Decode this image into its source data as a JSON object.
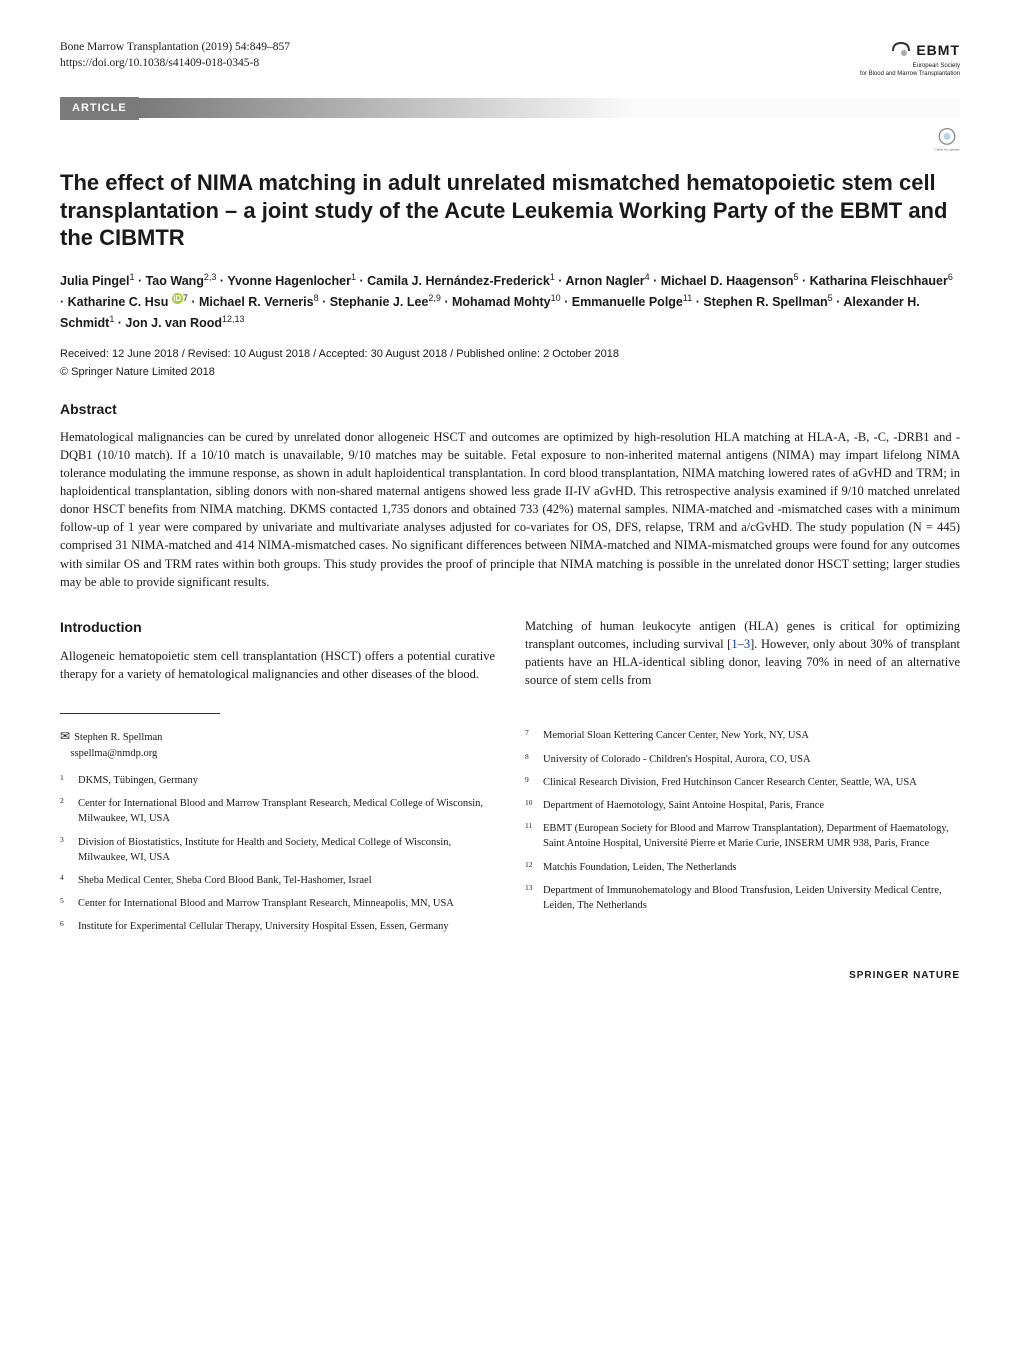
{
  "header": {
    "journal_line": "Bone Marrow Transplantation (2019) 54:849–857",
    "doi_line": "https://doi.org/10.1038/s41409-018-0345-8",
    "article_label": "ARTICLE",
    "logo_text": "EBMT",
    "logo_sub1": "European Society",
    "logo_sub2": "for Blood and Marrow Transplantation",
    "check_updates": "Check for updates"
  },
  "title": "The effect of NIMA matching in adult unrelated mismatched hematopoietic stem cell transplantation – a joint study of the Acute Leukemia Working Party of the EBMT and the CIBMTR",
  "authors_html": "Julia Pingel<sup>1</sup> · Tao Wang<sup>2,3</sup> · Yvonne Hagenlocher<sup>1</sup> · Camila J. Hernández-Frederick<sup>1</sup> · Arnon Nagler<sup>4</sup> · Michael D. Haagenson<sup>5</sup> · Katharina Fleischhauer<sup>6</sup> · Katharine C. Hsu <span class='orcid' data-name='orcid-icon' data-interactable='false'>iD</span><sup>7</sup> · Michael R. Verneris<sup>8</sup> · Stephanie J. Lee<sup>2,9</sup> · Mohamad Mohty<sup>10</sup> · Emmanuelle Polge<sup>11</sup> · Stephen R. Spellman<sup>5</sup> · Alexander H. Schmidt<sup>1</sup> · Jon J. van Rood<sup>12,13</sup>",
  "pub_info": "Received: 12 June 2018 / Revised: 10 August 2018 / Accepted: 30 August 2018 / Published online: 2 October 2018",
  "copyright": "© Springer Nature Limited 2018",
  "abstract_heading": "Abstract",
  "abstract": "Hematological malignancies can be cured by unrelated donor allogeneic HSCT and outcomes are optimized by high-resolution HLA matching at HLA-A, -B, -C, -DRB1 and -DQB1 (10/10 match). If a 10/10 match is unavailable, 9/10 matches may be suitable. Fetal exposure to non-inherited maternal antigens (NIMA) may impart lifelong NIMA tolerance modulating the immune response, as shown in adult haploidentical transplantation. In cord blood transplantation, NIMA matching lowered rates of aGvHD and TRM; in haploidentical transplantation, sibling donors with non-shared maternal antigens showed less grade II-IV aGvHD. This retrospective analysis examined if 9/10 matched unrelated donor HSCT benefits from NIMA matching. DKMS contacted 1,735 donors and obtained 733 (42%) maternal samples. NIMA-matched and -mismatched cases with a minimum follow-up of 1 year were compared by univariate and multivariate analyses adjusted for co-variates for OS, DFS, relapse, TRM and a/cGvHD. The study population (N = 445) comprised 31 NIMA-matched and 414 NIMA-mismatched cases. No significant differences between NIMA-matched and NIMA-mismatched groups were found for any outcomes with similar OS and TRM rates within both groups. This study provides the proof of principle that NIMA matching is possible in the unrelated donor HSCT setting; larger studies may be able to provide significant results.",
  "intro_heading": "Introduction",
  "intro_col1": "Allogeneic hematopoietic stem cell transplantation (HSCT) offers a potential curative therapy for a variety of hematological malignancies and other diseases of the blood.",
  "intro_col2_a": "Matching of human leukocyte antigen (HLA) genes is critical for optimizing transplant outcomes, including survival [",
  "intro_col2_ref1": "1",
  "intro_col2_dash": "–",
  "intro_col2_ref2": "3",
  "intro_col2_b": "]. However, only about 30% of transplant patients have an HLA-identical sibling donor, leaving 70% in need of an alternative source of stem cells from",
  "correspondence": {
    "name": "Stephen R. Spellman",
    "email": "sspellma@nmdp.org"
  },
  "affiliations_left": [
    {
      "n": "1",
      "t": "DKMS, Tübingen, Germany"
    },
    {
      "n": "2",
      "t": "Center for International Blood and Marrow Transplant Research, Medical College of Wisconsin, Milwaukee, WI, USA"
    },
    {
      "n": "3",
      "t": "Division of Biostatistics, Institute for Health and Society, Medical College of Wisconsin, Milwaukee, WI, USA"
    },
    {
      "n": "4",
      "t": "Sheba Medical Center, Sheba Cord Blood Bank, Tel-Hashomer, Israel"
    },
    {
      "n": "5",
      "t": "Center for International Blood and Marrow Transplant Research, Minneapolis, MN, USA"
    },
    {
      "n": "6",
      "t": "Institute for Experimental Cellular Therapy, University Hospital Essen, Essen, Germany"
    }
  ],
  "affiliations_right": [
    {
      "n": "7",
      "t": "Memorial Sloan Kettering Cancer Center, New York, NY, USA"
    },
    {
      "n": "8",
      "t": "University of Colorado - Children's Hospital, Aurora, CO, USA"
    },
    {
      "n": "9",
      "t": "Clinical Research Division, Fred Hutchinson Cancer Research Center, Seattle, WA, USA"
    },
    {
      "n": "10",
      "t": "Department of Haemotology, Saint Antoine Hospital, Paris, France"
    },
    {
      "n": "11",
      "t": "EBMT (European Society for Blood and Marrow Transplantation), Department of Haematology, Saint Antoine Hospital, Université Pierre et Marie Curie, INSERM UMR 938, Paris, France"
    },
    {
      "n": "12",
      "t": "Matchis Foundation, Leiden, The Netherlands"
    },
    {
      "n": "13",
      "t": "Department of Immunohematology and Blood Transfusion, Leiden University Medical Centre, Leiden, The Netherlands"
    }
  ],
  "footer": "SPRINGER NATURE",
  "colors": {
    "article_bar_bg": "#7a7a7a",
    "text": "#1a1a1a",
    "link": "#0044aa",
    "orcid": "#a6ce39"
  }
}
